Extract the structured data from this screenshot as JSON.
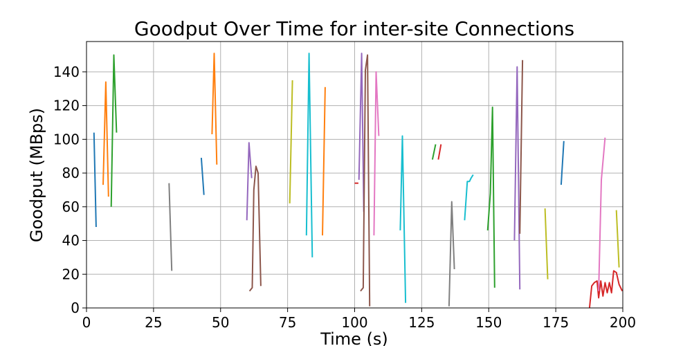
{
  "chart_data": {
    "type": "line",
    "title": "Goodput Over Time for inter-site Connections",
    "xlabel": "Time (s)",
    "ylabel": "Goodput (MBps)",
    "xlim": [
      0,
      200
    ],
    "ylim": [
      0,
      158
    ],
    "xticks": [
      0,
      25,
      50,
      75,
      100,
      125,
      150,
      175,
      200
    ],
    "yticks": [
      0,
      20,
      40,
      60,
      80,
      100,
      120,
      140
    ],
    "grid": true,
    "legend": "none",
    "series": [
      {
        "color": "#1f77b4",
        "x": [
          2.8,
          3.6
        ],
        "y": [
          104,
          48
        ]
      },
      {
        "color": "#ff7f0e",
        "x": [
          6.2,
          7.2,
          8.2
        ],
        "y": [
          73,
          134,
          66
        ]
      },
      {
        "color": "#2ca02c",
        "x": [
          9.2,
          10.2,
          11.2
        ],
        "y": [
          60,
          150,
          104
        ]
      },
      {
        "color": "#7f7f7f",
        "x": [
          30.8,
          31.8
        ],
        "y": [
          74,
          22
        ]
      },
      {
        "color": "#1f77b4",
        "x": [
          42.8,
          43.8
        ],
        "y": [
          89,
          67
        ]
      },
      {
        "color": "#ff7f0e",
        "x": [
          46.8,
          47.6,
          48.6
        ],
        "y": [
          103,
          151,
          85
        ]
      },
      {
        "color": "#9467bd",
        "x": [
          59.8,
          60.6,
          61.6
        ],
        "y": [
          52,
          98,
          77
        ]
      },
      {
        "color": "#8c564b",
        "x": [
          60.8,
          61.8,
          62.4,
          63.2,
          64.0,
          65.0
        ],
        "y": [
          10,
          12,
          70,
          84,
          80,
          13
        ]
      },
      {
        "color": "#bcbd22",
        "x": [
          75.8,
          76.8
        ],
        "y": [
          62,
          135
        ]
      },
      {
        "color": "#17becf",
        "x": [
          82.0,
          83.0,
          84.2
        ],
        "y": [
          43,
          151,
          30
        ]
      },
      {
        "color": "#ff7f0e",
        "x": [
          88.0,
          89.0
        ],
        "y": [
          43,
          131
        ]
      },
      {
        "color": "#d62728",
        "x": [
          100.0,
          101.4
        ],
        "y": [
          74,
          74
        ]
      },
      {
        "color": "#9467bd",
        "x": [
          101.6,
          102.6,
          103.4
        ],
        "y": [
          76,
          151,
          57
        ]
      },
      {
        "color": "#8c564b",
        "x": [
          102.2,
          103.2,
          104.0,
          104.8,
          105.6
        ],
        "y": [
          10,
          12,
          141,
          150,
          1
        ]
      },
      {
        "color": "#e377c2",
        "x": [
          107.2,
          108.0,
          109.0
        ],
        "y": [
          43,
          140,
          102
        ]
      },
      {
        "color": "#17becf",
        "x": [
          117.0,
          117.8,
          119.0
        ],
        "y": [
          46,
          102,
          3
        ]
      },
      {
        "color": "#2ca02c",
        "x": [
          129.0,
          130.2
        ],
        "y": [
          88,
          97
        ]
      },
      {
        "color": "#d62728",
        "x": [
          131.2,
          132.2
        ],
        "y": [
          88,
          97
        ]
      },
      {
        "color": "#7f7f7f",
        "x": [
          135.2,
          136.2,
          137.2
        ],
        "y": [
          1,
          63,
          23
        ]
      },
      {
        "color": "#17becf",
        "x": [
          141.0,
          142.0,
          142.8,
          143.4,
          144.2
        ],
        "y": [
          52,
          75,
          75,
          77,
          79
        ]
      },
      {
        "color": "#2ca02c",
        "x": [
          149.6,
          150.6,
          151.4,
          152.2
        ],
        "y": [
          46,
          68,
          119,
          12
        ]
      },
      {
        "color": "#9467bd",
        "x": [
          159.6,
          160.6,
          161.6
        ],
        "y": [
          40,
          143,
          11
        ]
      },
      {
        "color": "#8c564b",
        "x": [
          161.6,
          162.6
        ],
        "y": [
          44,
          147
        ]
      },
      {
        "color": "#bcbd22",
        "x": [
          171.0,
          172.0
        ],
        "y": [
          59,
          17
        ]
      },
      {
        "color": "#1f77b4",
        "x": [
          177.0,
          178.0
        ],
        "y": [
          73,
          99
        ]
      },
      {
        "color": "#d62728",
        "x": [
          187.6,
          188.4,
          189.4,
          190.4,
          191.0,
          191.8,
          192.6,
          193.4,
          194.2,
          195.0,
          195.8,
          196.6,
          197.6,
          198.6,
          199.8
        ],
        "y": [
          0,
          13,
          15,
          16,
          6,
          16,
          7,
          15,
          9,
          15,
          9,
          22,
          21,
          14,
          10
        ]
      },
      {
        "color": "#e377c2",
        "x": [
          191.0,
          192.0,
          193.4
        ],
        "y": [
          10,
          76,
          101
        ]
      },
      {
        "color": "#bcbd22",
        "x": [
          197.6,
          198.6
        ],
        "y": [
          58,
          24
        ]
      }
    ]
  }
}
